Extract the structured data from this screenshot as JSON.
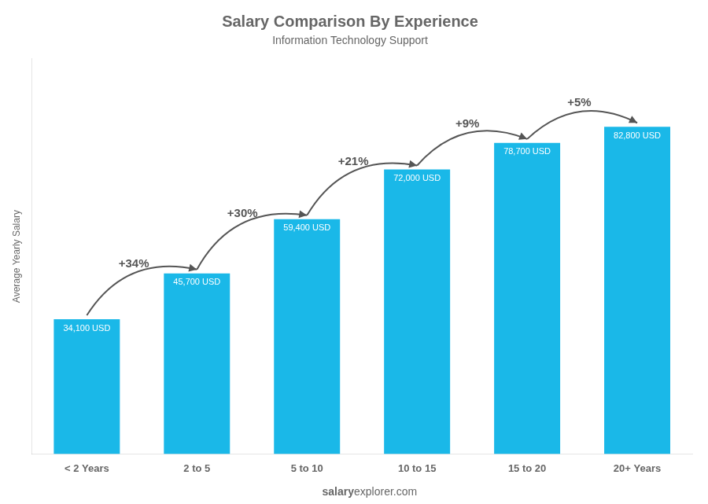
{
  "chart_data": {
    "type": "bar",
    "title": "Salary Comparison By Experience",
    "subtitle": "Information Technology Support",
    "y_label": "Average Yearly Salary",
    "categories": [
      "< 2 Years",
      "2 to 5",
      "5 to 10",
      "10 to 15",
      "15 to 20",
      "20+ Years"
    ],
    "values": [
      34100,
      45700,
      59400,
      72000,
      78700,
      82800
    ],
    "value_labels": [
      "34,100 USD",
      "45,700 USD",
      "59,400 USD",
      "72,000 USD",
      "78,700 USD",
      "82,800 USD"
    ],
    "data_labels": true,
    "color": "#1ab8e8",
    "annotations": [
      "+34%",
      "+30%",
      "+21%",
      "+9%",
      "+5%"
    ],
    "footer": [
      "salary",
      "explorer.com"
    ],
    "ylim": [
      0,
      100000
    ],
    "tick_labels": "x",
    "grid": false
  }
}
